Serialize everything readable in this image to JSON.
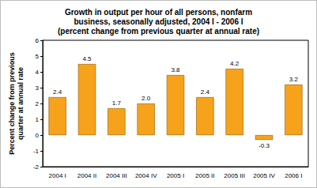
{
  "chart_data": {
    "type": "bar",
    "title": "Growth in output per hour of all persons, nonfarm\nbusiness, seasonally adjusted, 2004 I - 2006 I\n(percent change from previous quarter at annual rate)",
    "y_label": "Percent change from previous\nquarter at annual rate",
    "categories": [
      "2004 I",
      "2004 II",
      "2004 III",
      "2004 IV",
      "2005 I",
      "2005 II",
      "2005 III",
      "2005 IV",
      "2006 I"
    ],
    "values": [
      2.4,
      4.5,
      1.7,
      2.0,
      3.8,
      2.4,
      4.2,
      -0.3,
      3.2
    ],
    "value_labels": [
      "2.4",
      "4.5",
      "1.7",
      "2.0",
      "3.8",
      "2.4",
      "4.2",
      "-0.3",
      "3.2"
    ],
    "color": "#f7a21b",
    "ylim": [
      -2,
      6
    ],
    "yticks": [
      -2,
      -1,
      0,
      1,
      2,
      3,
      4,
      5,
      6
    ],
    "grid": false,
    "data_labels": true
  }
}
